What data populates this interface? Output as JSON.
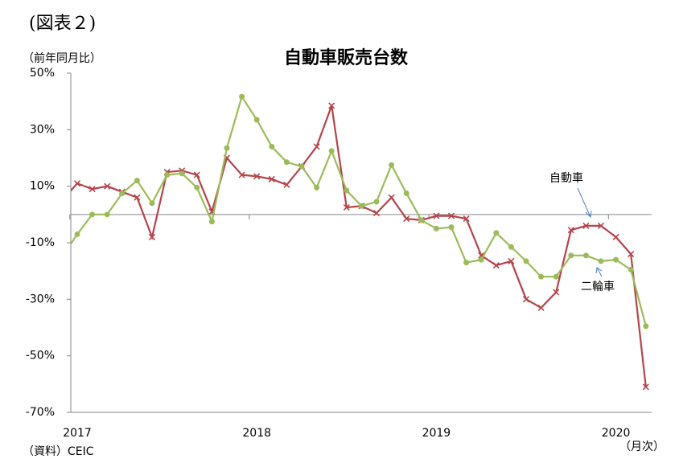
{
  "chart_data": {
    "type": "line",
    "label": "(図表２)",
    "title": "自動車販売台数",
    "y_axis_label": "（前年同月比）",
    "x_axis_label": "（月次）",
    "source": "（資料）CEIC",
    "categories": [
      null,
      "2017",
      null,
      null,
      null,
      null,
      null,
      null,
      null,
      null,
      null,
      null,
      null,
      "2018",
      null,
      null,
      null,
      null,
      null,
      null,
      null,
      null,
      null,
      null,
      null,
      "2019",
      null,
      null,
      null,
      null,
      null,
      null,
      null,
      null,
      null,
      null,
      null,
      "2020",
      null,
      null
    ],
    "series": [
      {
        "name": "自動車",
        "color": "#b5444a",
        "marker": "x",
        "values": [
          5,
          11,
          9,
          10,
          8,
          6,
          -8,
          15,
          15.5,
          14,
          1,
          20,
          14,
          13.5,
          12.5,
          10.5,
          17,
          24,
          38.5,
          2.5,
          3,
          0.5,
          6,
          -1.5,
          -2,
          -0.5,
          -0.5,
          -1.5,
          -14.5,
          -18,
          -16.5,
          -30,
          -33,
          -27.5,
          -5.5,
          -4,
          -4,
          -8,
          -14,
          -61
        ]
      },
      {
        "name": "二輪車",
        "color": "#9bbb59",
        "marker": "circle",
        "values": [
          -15,
          -7,
          0,
          0,
          7.5,
          12,
          4,
          14,
          14.5,
          9.5,
          -2.5,
          23.5,
          41.7,
          33.5,
          24,
          18.5,
          17,
          9.5,
          22.5,
          8.5,
          3,
          4.5,
          17.5,
          7.5,
          -2,
          -5,
          -4.5,
          -17,
          -16,
          -6.5,
          -11.5,
          -16.5,
          -22,
          -22,
          -14.5,
          -14.5,
          -16.5,
          -16,
          -19.5,
          -39.5
        ]
      }
    ],
    "ylim": [
      -70,
      50
    ],
    "yticks": [
      {
        "value": -70,
        "label": "-70%"
      },
      {
        "value": -50,
        "label": "-50%"
      },
      {
        "value": -30,
        "label": "-30%"
      },
      {
        "value": -10,
        "label": "-10%"
      },
      {
        "value": 10,
        "label": "10%"
      },
      {
        "value": 30,
        "label": "30%"
      },
      {
        "value": 50,
        "label": "50%"
      }
    ],
    "grid": false
  }
}
